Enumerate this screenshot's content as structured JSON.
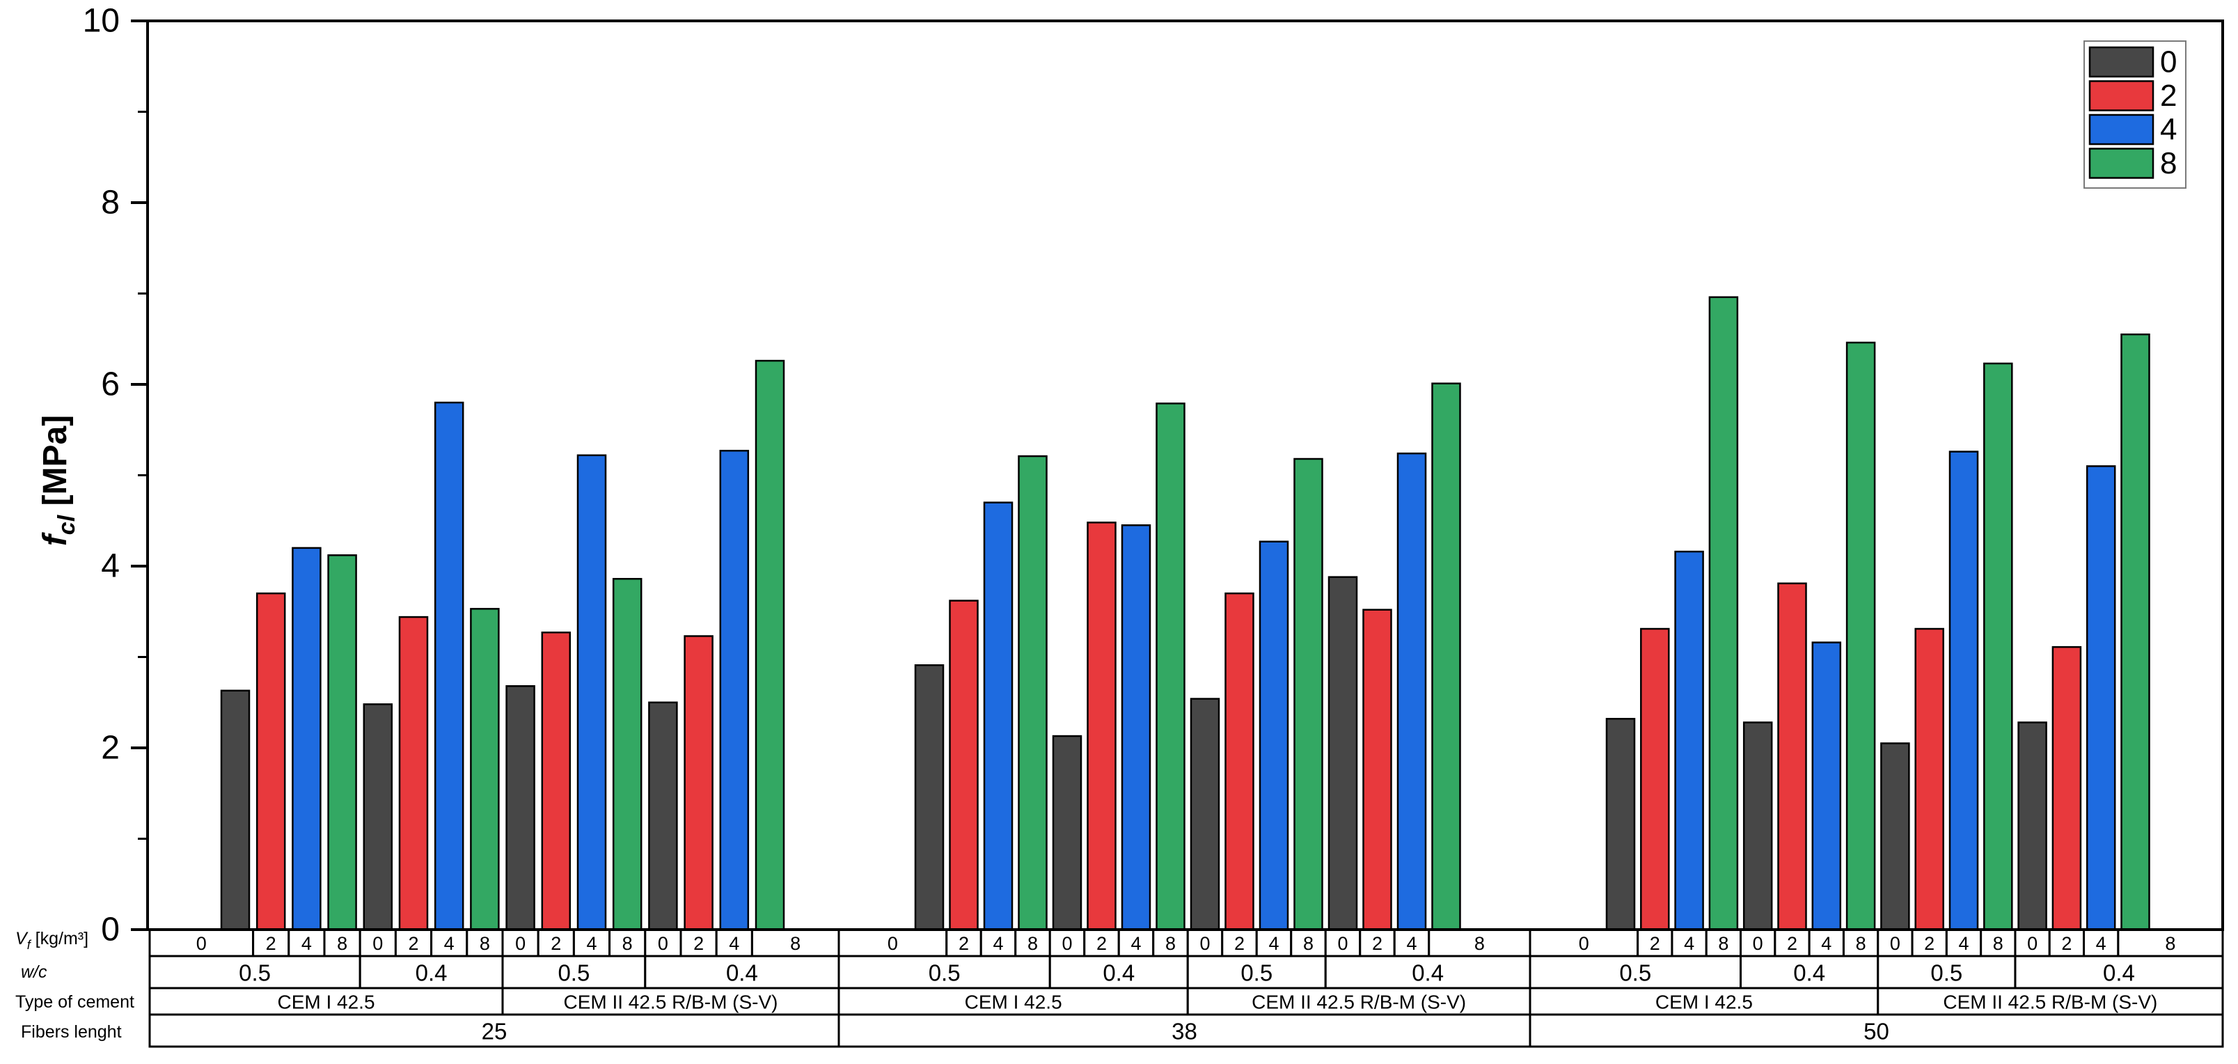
{
  "chart_data": {
    "type": "bar",
    "title": "",
    "ylabel": {
      "main": "f",
      "sub": "cl",
      "rest": " [MPa]"
    },
    "ylim": [
      0,
      10
    ],
    "yticks_major": [
      0,
      2,
      4,
      6,
      8,
      10
    ],
    "yticks_minor": [
      1,
      3,
      5,
      7,
      9
    ],
    "grid": "off",
    "legend": {
      "position": "top-right",
      "items": [
        {
          "label": "0",
          "color": "#474747"
        },
        {
          "label": "2",
          "color": "#e8393d"
        },
        {
          "label": "4",
          "color": "#1e6be0"
        },
        {
          "label": "8",
          "color": "#33a863"
        }
      ]
    },
    "bar_outline_color": "#000000",
    "axis_rows": [
      {
        "id": "vf",
        "label_main": "V",
        "label_sub": "f",
        "label_rest": " [kg/m³]",
        "italic": true
      },
      {
        "id": "wc",
        "label_main": "w/c",
        "label_sub": "",
        "label_rest": "",
        "italic": true
      },
      {
        "id": "cement",
        "label_main": "Type of cement",
        "label_sub": "",
        "label_rest": "",
        "italic": false
      },
      {
        "id": "fibers",
        "label_main": "Fibers lenght",
        "label_sub": "",
        "label_rest": "",
        "italic": false
      }
    ],
    "fiber_volumes": [
      "0",
      "2",
      "4",
      "8"
    ],
    "sections": [
      {
        "fibers_length": "25",
        "cements": [
          {
            "name": "CEM I 42.5",
            "groups": [
              {
                "wc": "0.5",
                "values": [
                  2.63,
                  3.7,
                  4.2,
                  4.12
                ]
              },
              {
                "wc": "0.4",
                "values": [
                  2.48,
                  3.44,
                  5.8,
                  3.53
                ]
              }
            ]
          },
          {
            "name": "CEM II 42.5 R/B-M (S-V)",
            "groups": [
              {
                "wc": "0.5",
                "values": [
                  2.68,
                  3.27,
                  5.22,
                  3.86
                ]
              },
              {
                "wc": "0.4",
                "values": [
                  2.5,
                  3.23,
                  5.27,
                  6.26
                ]
              }
            ]
          }
        ]
      },
      {
        "fibers_length": "38",
        "cements": [
          {
            "name": "CEM I 42.5",
            "groups": [
              {
                "wc": "0.5",
                "values": [
                  2.91,
                  3.62,
                  4.7,
                  5.21
                ]
              },
              {
                "wc": "0.4",
                "values": [
                  2.13,
                  4.48,
                  4.45,
                  5.79
                ]
              }
            ]
          },
          {
            "name": "CEM II 42.5 R/B-M (S-V)",
            "groups": [
              {
                "wc": "0.5",
                "values": [
                  2.54,
                  3.7,
                  4.27,
                  5.18
                ]
              },
              {
                "wc": "0.4",
                "values": [
                  3.88,
                  3.52,
                  5.24,
                  6.01
                ]
              }
            ]
          }
        ]
      },
      {
        "fibers_length": "50",
        "cements": [
          {
            "name": "CEM I 42.5",
            "groups": [
              {
                "wc": "0.5",
                "values": [
                  2.32,
                  3.31,
                  4.16,
                  6.96
                ]
              },
              {
                "wc": "0.4",
                "values": [
                  2.28,
                  3.81,
                  3.16,
                  6.46
                ]
              }
            ]
          },
          {
            "name": "CEM II 42.5 R/B-M (S-V)",
            "groups": [
              {
                "wc": "0.5",
                "values": [
                  2.05,
                  3.31,
                  5.26,
                  6.23
                ]
              },
              {
                "wc": "0.4",
                "values": [
                  2.28,
                  3.11,
                  5.1,
                  6.55
                ]
              }
            ]
          }
        ]
      }
    ]
  }
}
